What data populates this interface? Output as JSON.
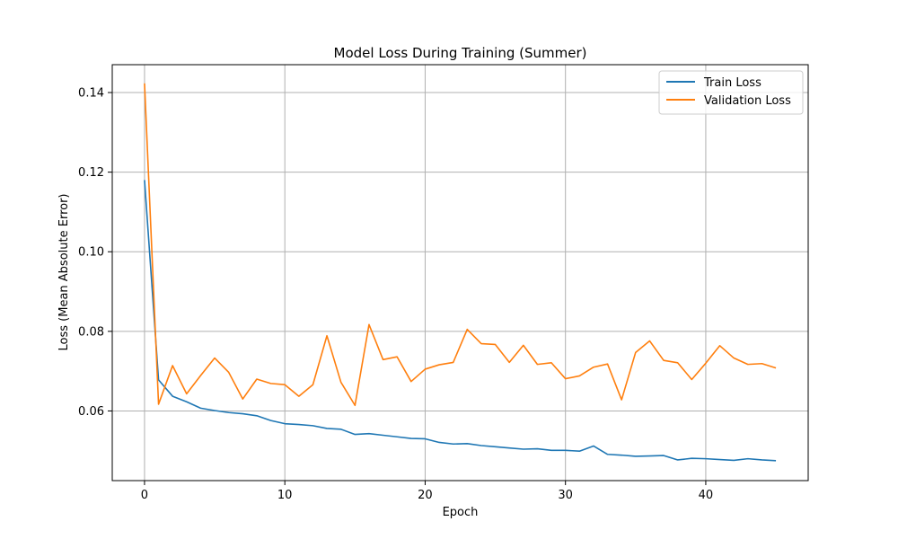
{
  "chart_data": {
    "type": "line",
    "title": "Model Loss During Training (Summer)",
    "xlabel": "Epoch",
    "ylabel": "Loss (Mean Absolute Error)",
    "xlim": [
      -2.3,
      47.3
    ],
    "ylim": [
      0.0425,
      0.147
    ],
    "xticks": [
      0,
      10,
      20,
      30,
      40
    ],
    "yticks": [
      0.06,
      0.08,
      0.1,
      0.12,
      0.14
    ],
    "ytick_labels": [
      "0.06",
      "0.08",
      "0.10",
      "0.12",
      "0.14"
    ],
    "grid": true,
    "legend_position": "top-right",
    "x": [
      0,
      1,
      2,
      3,
      4,
      5,
      6,
      7,
      8,
      9,
      10,
      11,
      12,
      13,
      14,
      15,
      16,
      17,
      18,
      19,
      20,
      21,
      22,
      23,
      24,
      25,
      26,
      27,
      28,
      29,
      30,
      31,
      32,
      33,
      34,
      35,
      36,
      37,
      38,
      39,
      40,
      41,
      42,
      43,
      44,
      45
    ],
    "series": [
      {
        "name": "Train Loss",
        "color": "#1f77b4",
        "values": [
          0.118,
          0.0678,
          0.0637,
          0.0623,
          0.0607,
          0.0601,
          0.0596,
          0.0593,
          0.0588,
          0.0576,
          0.0568,
          0.0566,
          0.0563,
          0.0556,
          0.0554,
          0.0541,
          0.0543,
          0.0539,
          0.0535,
          0.0531,
          0.053,
          0.0521,
          0.0517,
          0.0518,
          0.0513,
          0.051,
          0.0507,
          0.0504,
          0.0505,
          0.0501,
          0.0501,
          0.0499,
          0.0512,
          0.0491,
          0.0489,
          0.0486,
          0.0487,
          0.0488,
          0.0477,
          0.0481,
          0.048,
          0.0478,
          0.0476,
          0.048,
          0.0477,
          0.0475
        ]
      },
      {
        "name": "Validation Loss",
        "color": "#ff7f0e",
        "values": [
          0.1423,
          0.0617,
          0.0714,
          0.0643,
          0.0689,
          0.0733,
          0.0697,
          0.063,
          0.068,
          0.0669,
          0.0666,
          0.0637,
          0.0666,
          0.0789,
          0.0672,
          0.0614,
          0.0817,
          0.0729,
          0.0736,
          0.0674,
          0.0705,
          0.0716,
          0.0722,
          0.0805,
          0.0769,
          0.0767,
          0.0722,
          0.0765,
          0.0717,
          0.0721,
          0.0681,
          0.0688,
          0.071,
          0.0718,
          0.0628,
          0.0747,
          0.0776,
          0.0727,
          0.0721,
          0.0679,
          0.072,
          0.0764,
          0.0733,
          0.0717,
          0.0719,
          0.0708
        ]
      }
    ]
  }
}
